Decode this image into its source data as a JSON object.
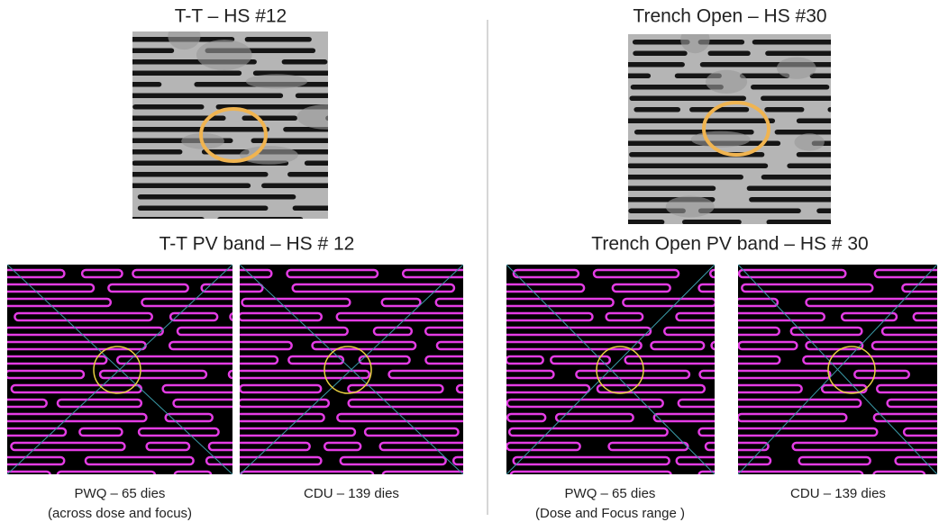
{
  "left": {
    "sem_title": "T-T – HS #12",
    "pv_title": "T-T PV band – HS # 12",
    "captions": [
      [
        "PWQ – 65 dies",
        "(across dose and focus)"
      ],
      [
        "CDU – 139 dies"
      ]
    ]
  },
  "right": {
    "sem_title": "Trench Open – HS #30",
    "pv_title": "Trench Open PV band – HS # 30",
    "captions": [
      [
        "PWQ – 65 dies",
        "(Dose and Focus range )"
      ],
      [
        "CDU – 139 dies"
      ]
    ]
  }
}
